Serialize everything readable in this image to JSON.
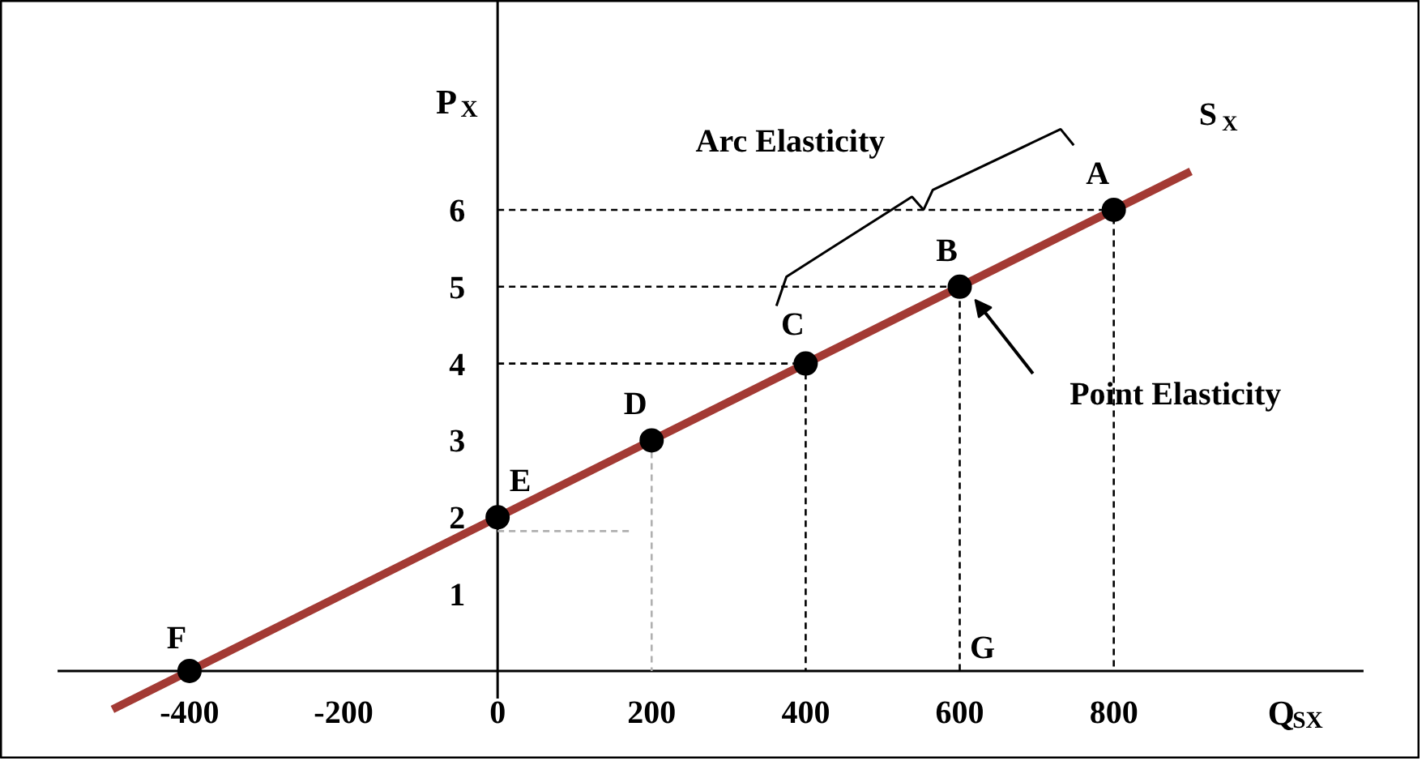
{
  "chart_data": {
    "type": "line",
    "xlabel": "Q$_{SX}$",
    "ylabel": "P$_{X}$",
    "xlim": [
      -645,
      1198
    ],
    "ylim": [
      -1.15,
      8.72
    ],
    "xticks": [
      -400,
      -200,
      0,
      200,
      400,
      600,
      800
    ],
    "yticks": [
      1,
      2,
      3,
      4,
      5,
      6
    ],
    "grid": false,
    "line_style": "solid",
    "series": [
      {
        "name": "S$_{X}$",
        "color": "#a33a34",
        "x": [
          -500,
          900
        ],
        "values": [
          -0.5,
          6.5
        ]
      },
      {
        "line_style": "dashed",
        "color": "#000000",
        "x": [
          0,
          800,
          800
        ],
        "values": [
          6,
          6,
          0
        ]
      },
      {
        "line_style": "dashed",
        "color": "#000000",
        "x": [
          0,
          600,
          600
        ],
        "values": [
          5,
          5,
          0
        ]
      },
      {
        "line_style": "dashed",
        "color": "#000000",
        "x": [
          0,
          400,
          400
        ],
        "values": [
          4,
          4,
          0
        ]
      },
      {
        "line_style": "dashed",
        "color": "#b0b0b0",
        "x": [
          0,
          172
        ],
        "values": [
          1.82,
          1.82
        ]
      },
      {
        "line_style": "dashed",
        "color": "#b0b0b0",
        "x": [
          200,
          200
        ],
        "values": [
          3,
          0
        ]
      },
      {
        "type": "scatter",
        "marker": "circle",
        "color": "#000000",
        "x": [
          800,
          600,
          400,
          200,
          0,
          -400
        ],
        "values": [
          6,
          5,
          4,
          3,
          2,
          0
        ]
      }
    ],
    "annotations": [
      "Arc Elasticity",
      "Point Elasticity",
      {
        "text": "A",
        "x": 800,
        "y": 6
      },
      {
        "text": "B",
        "x": 600,
        "y": 5
      },
      {
        "text": "C",
        "x": 400,
        "y": 4
      },
      {
        "text": "D",
        "x": 200,
        "y": 3
      },
      {
        "text": "E",
        "x": 0,
        "y": 2
      },
      {
        "text": "F",
        "x": -400,
        "y": 0
      },
      {
        "text": "G",
        "x": 600,
        "y": 0
      }
    ]
  }
}
